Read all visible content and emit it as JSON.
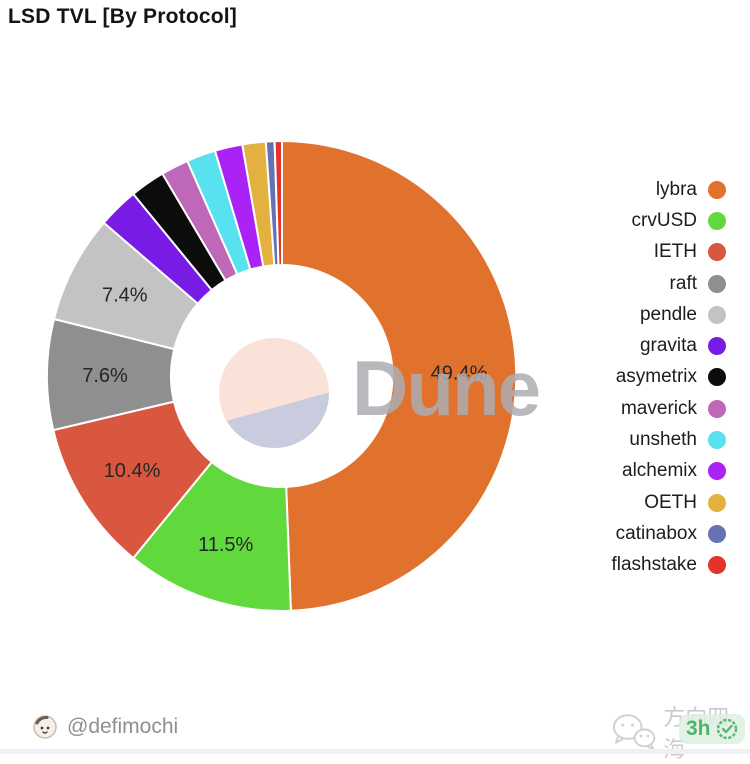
{
  "title": "LSD TVL [By Protocol]",
  "watermark": "Dune",
  "chart_data": {
    "type": "pie",
    "subtype": "donut",
    "title": "LSD TVL [By Protocol]",
    "start_angle_deg": 0,
    "direction": "clockwise",
    "legend_position": "right",
    "series": [
      {
        "name": "lybra",
        "value": 49.4,
        "label": "49.4%",
        "color": "#e0722d"
      },
      {
        "name": "crvUSD",
        "value": 11.5,
        "label": "11.5%",
        "color": "#61d93d"
      },
      {
        "name": "IETH",
        "value": 10.4,
        "label": "10.4%",
        "color": "#d9573f"
      },
      {
        "name": "raft",
        "value": 7.6,
        "label": "7.6%",
        "color": "#8f8f8f"
      },
      {
        "name": "pendle",
        "value": 7.4,
        "label": "7.4%",
        "color": "#c3c3c3"
      },
      {
        "name": "gravita",
        "value": 2.8,
        "label": "",
        "color": "#771be5"
      },
      {
        "name": "asymetrix",
        "value": 2.4,
        "label": "",
        "color": "#0c0c0c"
      },
      {
        "name": "maverick",
        "value": 1.9,
        "label": "",
        "color": "#c068b8"
      },
      {
        "name": "unsheth",
        "value": 2.0,
        "label": "",
        "color": "#58e1ee"
      },
      {
        "name": "alchemix",
        "value": 1.9,
        "label": "",
        "color": "#ab22f7"
      },
      {
        "name": "OETH",
        "value": 1.6,
        "label": "",
        "color": "#e3b13f"
      },
      {
        "name": "catinabox",
        "value": 0.6,
        "label": "",
        "color": "#6672b4"
      },
      {
        "name": "flashstake",
        "value": 0.5,
        "label": "",
        "color": "#e5332a"
      }
    ]
  },
  "logo": {
    "top_color": "#fbe2d9",
    "bottom_color": "#c9ccdf"
  },
  "footer": {
    "author": "@defimochi"
  },
  "overlay": {
    "channel_watermark": "方向四海",
    "badge_time": "3h",
    "badge_green": "#3fae5f"
  }
}
